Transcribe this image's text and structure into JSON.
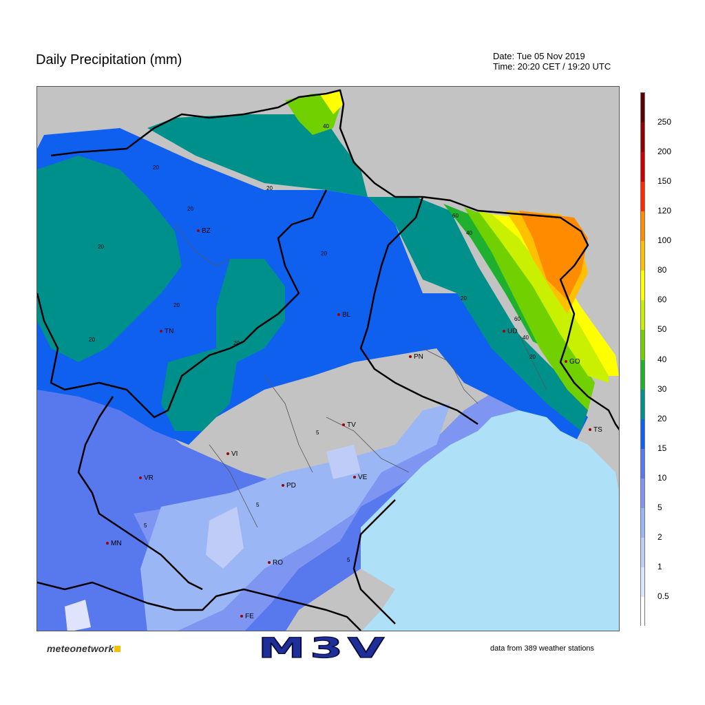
{
  "header": {
    "title": "Daily Precipitation (mm)",
    "date": "Date: Tue 05 Nov 2019",
    "time": "Time: 20:20 CET / 19:20 UTC"
  },
  "colors": {
    "land_outside": "#c3c3c3",
    "sea": "#aee0f7",
    "border_lines": "#000000"
  },
  "cities": [
    {
      "code": "BZ"
    },
    {
      "code": "TN"
    },
    {
      "code": "BL"
    },
    {
      "code": "UD"
    },
    {
      "code": "PN"
    },
    {
      "code": "GO"
    },
    {
      "code": "TS"
    },
    {
      "code": "TV"
    },
    {
      "code": "VI"
    },
    {
      "code": "VR"
    },
    {
      "code": "PD"
    },
    {
      "code": "VE"
    },
    {
      "code": "MN"
    },
    {
      "code": "RO"
    },
    {
      "code": "FE"
    }
  ],
  "contour_labels": [
    "20",
    "20",
    "20",
    "20",
    "20",
    "20",
    "20",
    "20",
    "40",
    "60",
    "40",
    "20",
    "60",
    "40",
    "20",
    "5",
    "5",
    "5",
    "5"
  ],
  "legend": {
    "labels": [
      "250",
      "200",
      "150",
      "120",
      "100",
      "80",
      "60",
      "50",
      "40",
      "30",
      "20",
      "15",
      "10",
      "5",
      "2",
      "1",
      "0.5"
    ],
    "colors": [
      "#5a0000",
      "#900000",
      "#cc0000",
      "#ff2a00",
      "#ff8c00",
      "#ffc000",
      "#ffff00",
      "#c8f000",
      "#70d000",
      "#20b030",
      "#00908c",
      "#1060f0",
      "#5878ee",
      "#7e96f2",
      "#9ab6f4",
      "#c0ccf8",
      "#dfe4fc",
      "#ffffff"
    ]
  },
  "footer": {
    "brand_left": "meteonetwork",
    "brand_center": "M3V",
    "note": "data from 389 weather stations"
  }
}
